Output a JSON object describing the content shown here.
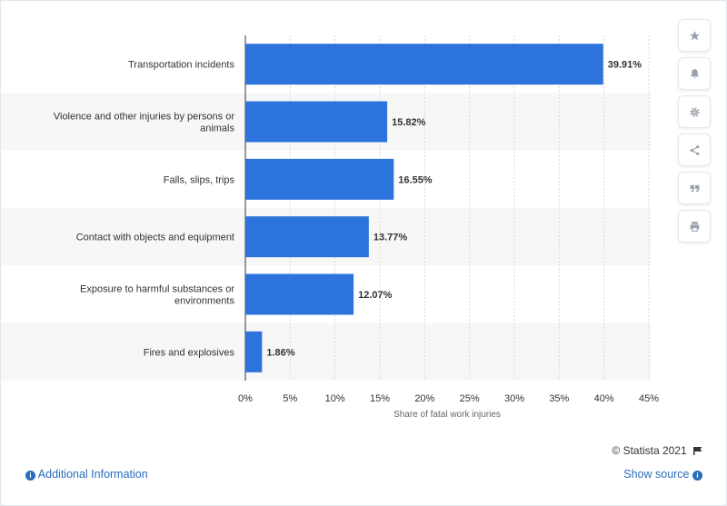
{
  "chart_data": {
    "type": "bar",
    "orientation": "horizontal",
    "categories": [
      "Transportation incidents",
      "Violence and other injuries by persons or animals",
      "Falls, slips, trips",
      "Contact with objects and equipment",
      "Exposure to harmful substances or environments",
      "Fires and explosives"
    ],
    "category_lines": [
      [
        "Transportation incidents"
      ],
      [
        "Violence and other injuries by persons or",
        "animals"
      ],
      [
        "Falls, slips, trips"
      ],
      [
        "Contact with objects and equipment"
      ],
      [
        "Exposure to harmful substances or",
        "environments"
      ],
      [
        "Fires and explosives"
      ]
    ],
    "values": [
      39.91,
      15.82,
      16.55,
      13.77,
      12.07,
      1.86
    ],
    "value_labels": [
      "39.91%",
      "15.82%",
      "16.55%",
      "13.77%",
      "12.07%",
      "1.86%"
    ],
    "xlabel": "Share of fatal work injuries",
    "ylabel": "",
    "xlim": [
      0,
      45
    ],
    "ticks": [
      0,
      5,
      10,
      15,
      20,
      25,
      30,
      35,
      40,
      45
    ],
    "tick_labels": [
      "0%",
      "5%",
      "10%",
      "15%",
      "20%",
      "25%",
      "30%",
      "35%",
      "40%",
      "45%"
    ],
    "grid": true,
    "legend": "none",
    "bar_color": "#2c74dc",
    "band_color": "#f7f7f7"
  },
  "toolbar": {
    "icons": [
      "star-icon",
      "bell-icon",
      "gear-icon",
      "share-icon",
      "quote-icon",
      "print-icon"
    ]
  },
  "footer": {
    "credit": "© Statista 2021",
    "additional_info": "Additional Information",
    "show_source": "Show source"
  }
}
